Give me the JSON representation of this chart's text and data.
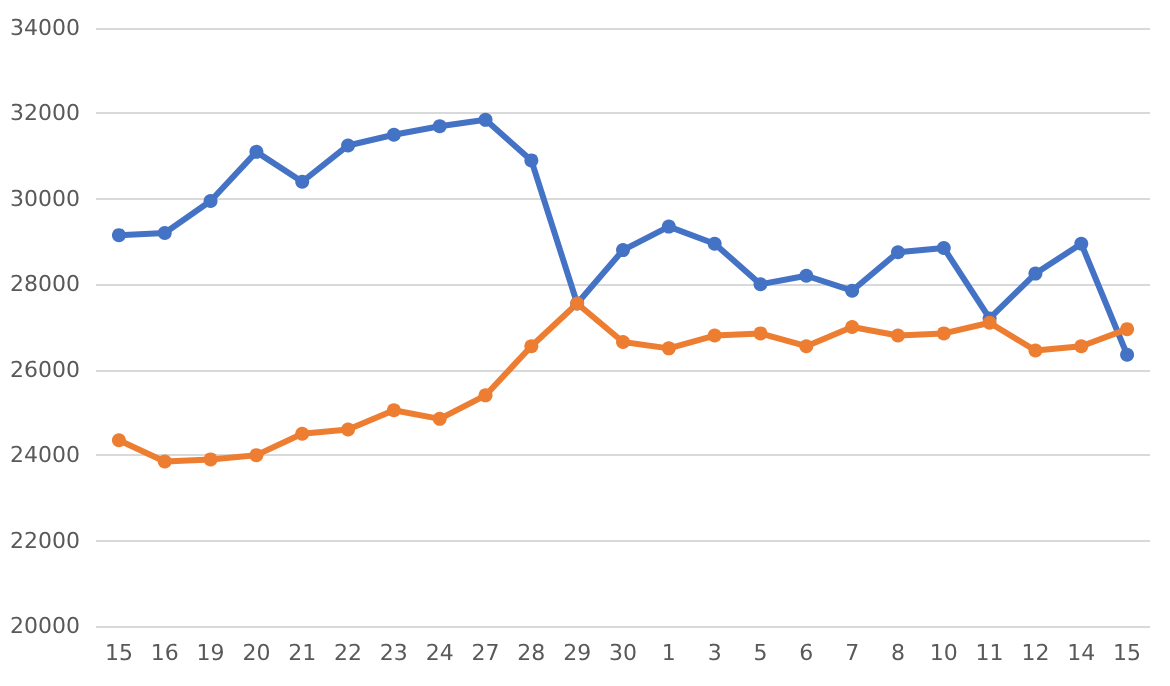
{
  "chart_data": {
    "type": "line",
    "categories": [
      "15",
      "16",
      "19",
      "20",
      "21",
      "22",
      "23",
      "24",
      "27",
      "28",
      "29",
      "30",
      "1",
      "3",
      "5",
      "6",
      "7",
      "8",
      "10",
      "11",
      "12",
      "14",
      "15"
    ],
    "series": [
      {
        "color": "#4472c4",
        "values": [
          29150,
          29200,
          29950,
          31100,
          30400,
          31250,
          31500,
          31700,
          31850,
          30900,
          27550,
          28800,
          29350,
          28950,
          28000,
          28200,
          27850,
          28750,
          28850,
          27200,
          28250,
          28950,
          26350
        ]
      },
      {
        "color": "#ed7d31",
        "values": [
          24350,
          23850,
          23900,
          24000,
          24500,
          24600,
          25050,
          24850,
          25400,
          26550,
          27550,
          26650,
          26500,
          26800,
          26850,
          26550,
          27000,
          26800,
          26850,
          27100,
          26450,
          26550,
          26950
        ]
      }
    ],
    "ylim": [
      20000,
      34000
    ],
    "yticks": [
      20000,
      22000,
      24000,
      26000,
      28000,
      30000,
      32000,
      34000
    ],
    "grid": "y",
    "marker": "circle",
    "line_style": "solid"
  }
}
